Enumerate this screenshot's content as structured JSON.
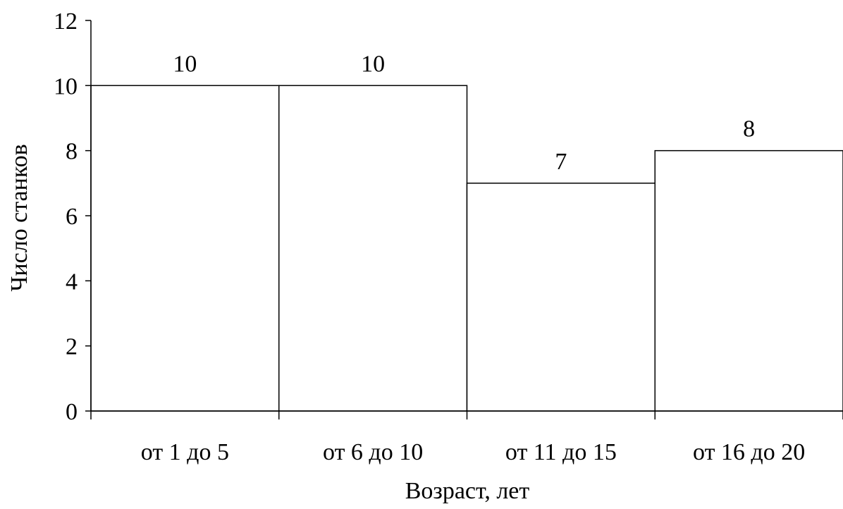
{
  "chart_data": {
    "type": "bar",
    "categories": [
      "от 1 до 5",
      "от 6 до 10",
      "от 11 до 15",
      "от 16 до 20"
    ],
    "values": [
      10,
      10,
      7,
      8
    ],
    "data_labels": [
      "10",
      "10",
      "7",
      "8"
    ],
    "title": "",
    "xlabel": "Возраст, лет",
    "ylabel": "Число станков",
    "ylim": [
      0,
      12
    ],
    "yticks": [
      "0",
      "2",
      "4",
      "6",
      "8",
      "10",
      "12"
    ],
    "bar_fill": "#ffffff",
    "bar_edge": "#000000",
    "grid": false,
    "legend": "none"
  }
}
